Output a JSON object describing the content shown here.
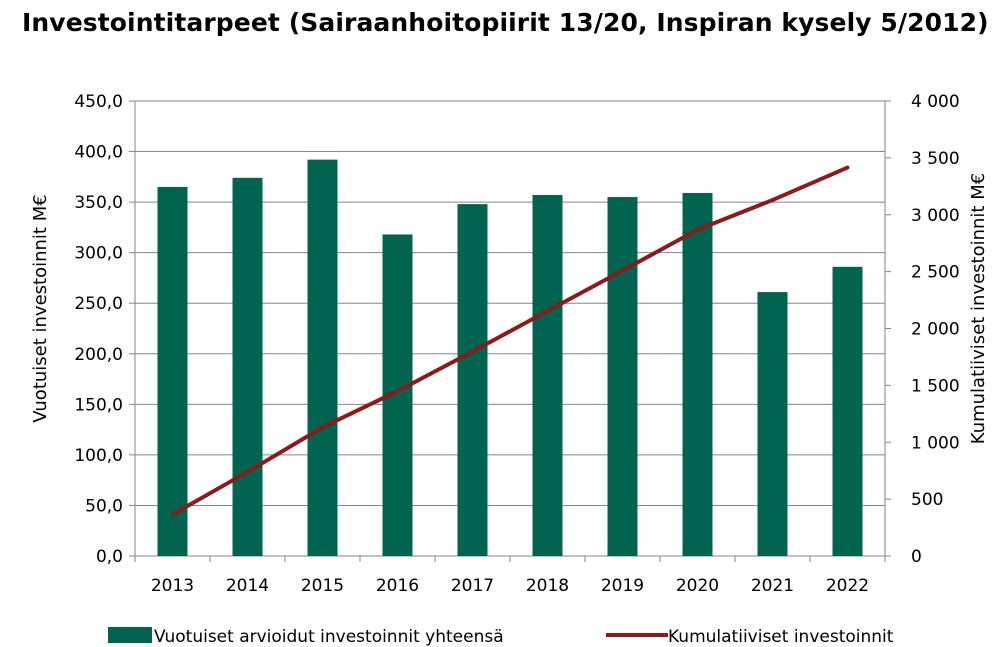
{
  "title": "Investointitarpeet (Sairaanhoitopiirit 13/20, Inspiran kysely 5/2012)",
  "chart_data": {
    "type": "bar",
    "title": "Investointitarpeet (Sairaanhoitopiirit 13/20, Inspiran kysely 5/2012)",
    "categories": [
      "2013",
      "2014",
      "2015",
      "2016",
      "2017",
      "2018",
      "2019",
      "2020",
      "2021",
      "2022"
    ],
    "series": [
      {
        "name": "Vuotuiset arvioidut investoinnit yhteensä",
        "type": "bar",
        "axis": "left",
        "color": "#006451",
        "values": [
          365,
          374,
          392,
          318,
          348,
          357,
          355,
          359,
          261,
          286
        ]
      },
      {
        "name": "Kumulatiiviset investoinnit",
        "type": "line",
        "axis": "right",
        "color": "#8b1a1a",
        "values": [
          365,
          739,
          1131,
          1449,
          1797,
          2154,
          2509,
          2868,
          3129,
          3415
        ]
      }
    ],
    "ylabel": "Vuotuiset investoinnit M€",
    "ylim": [
      0,
      450
    ],
    "yticks": [
      "0,0",
      "50,0",
      "100,0",
      "150,0",
      "200,0",
      "250,0",
      "300,0",
      "350,0",
      "400,0",
      "450,0"
    ],
    "y2label": "Kumulatiiviset investoinnit M€",
    "y2lim": [
      0,
      4000
    ],
    "y2ticks": [
      "0",
      "500",
      "1 000",
      "1 500",
      "2 000",
      "2 500",
      "3 000",
      "3 500",
      "4 000"
    ],
    "grid": true,
    "legend": "bottom"
  }
}
